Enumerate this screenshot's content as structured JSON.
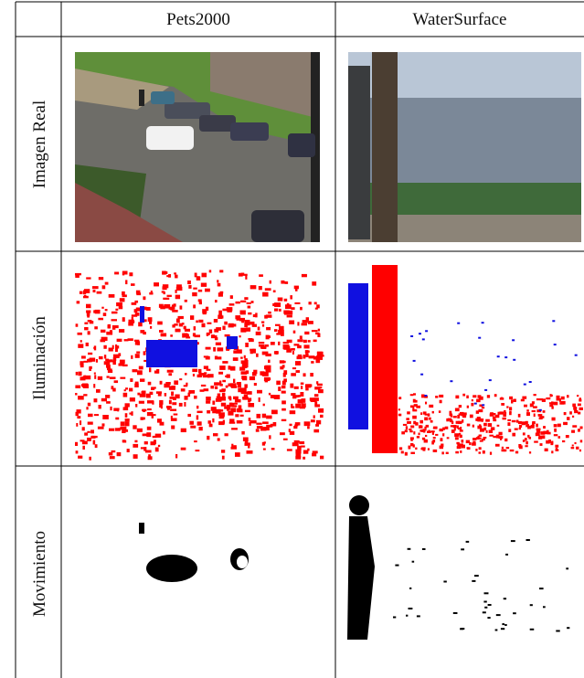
{
  "table": {
    "columns": [
      "Pets2000",
      "WaterSurface"
    ],
    "rows": [
      "Imagen Real",
      "Iluminación",
      "Movimiento"
    ]
  }
}
